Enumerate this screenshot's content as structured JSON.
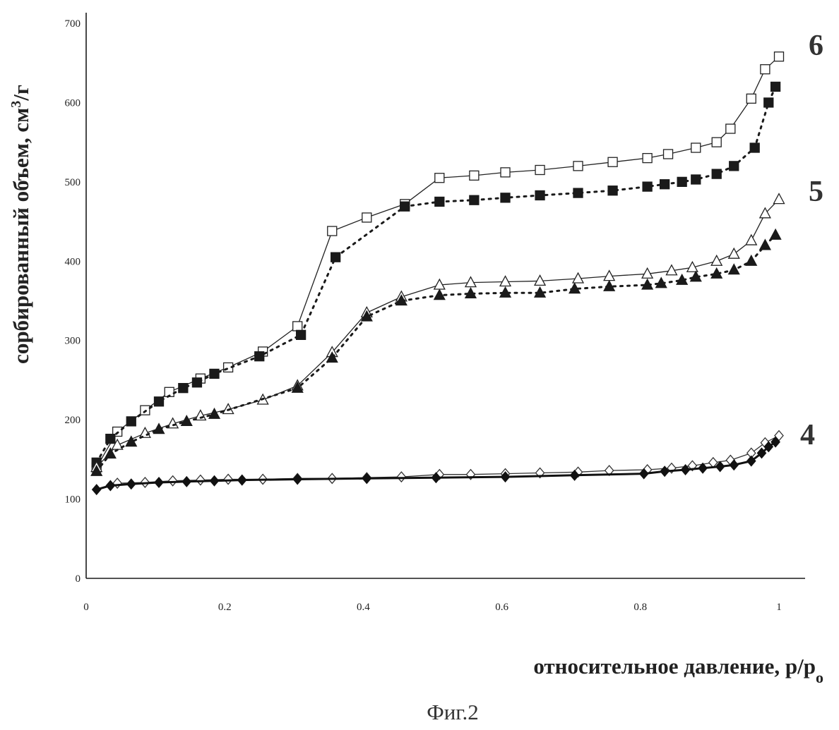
{
  "chart_data": {
    "type": "line",
    "ylabel_main": "сорбированный объем, см",
    "ylabel_sup": "3",
    "ylabel_tail": "/г",
    "xlabel_main": "относительное давление, p/p",
    "xlabel_sub": "o",
    "caption": "Фиг.2",
    "xlim": [
      0,
      1
    ],
    "ylim": [
      0,
      700
    ],
    "x_ticks": [
      "0",
      "0.2",
      "0.4",
      "0.6",
      "0.8",
      "1"
    ],
    "x_tick_values": [
      0,
      0.2,
      0.4,
      0.6,
      0.8,
      1
    ],
    "y_ticks": [
      "0",
      "100",
      "200",
      "300",
      "400",
      "500",
      "600",
      "700"
    ],
    "y_tick_values": [
      0,
      100,
      200,
      300,
      400,
      500,
      600,
      700
    ],
    "curve_labels": [
      {
        "text": "6",
        "curve": "6"
      },
      {
        "text": "5",
        "curve": "5"
      },
      {
        "text": "4",
        "curve": "4"
      }
    ],
    "series": [
      {
        "curve": "6",
        "kind": "desorption",
        "marker": "square",
        "filled": false,
        "line": "solid",
        "color": "#222222",
        "x": [
          0.015,
          0.045,
          0.085,
          0.12,
          0.165,
          0.205,
          0.255,
          0.305,
          0.355,
          0.405,
          0.46,
          0.51,
          0.56,
          0.605,
          0.655,
          0.71,
          0.76,
          0.81,
          0.84,
          0.88,
          0.91,
          0.93,
          0.96,
          0.98,
          1.0
        ],
        "y": [
          140,
          185,
          212,
          235,
          252,
          266,
          286,
          318,
          438,
          455,
          472,
          505,
          508,
          512,
          515,
          520,
          525,
          530,
          535,
          543,
          550,
          567,
          605,
          642,
          658
        ]
      },
      {
        "curve": "6",
        "kind": "adsorption",
        "marker": "square",
        "filled": true,
        "line": "dotted",
        "color": "#1a1a1a",
        "x": [
          0.015,
          0.035,
          0.065,
          0.105,
          0.14,
          0.16,
          0.185,
          0.25,
          0.31,
          0.36,
          0.46,
          0.51,
          0.56,
          0.605,
          0.655,
          0.71,
          0.76,
          0.81,
          0.835,
          0.86,
          0.88,
          0.91,
          0.935,
          0.965,
          0.985,
          0.995
        ],
        "y": [
          146,
          176,
          198,
          223,
          240,
          247,
          258,
          280,
          307,
          405,
          469,
          475,
          477,
          480,
          483,
          486,
          489,
          494,
          497,
          500,
          503,
          510,
          520,
          543,
          600,
          620
        ]
      },
      {
        "curve": "5",
        "kind": "desorption",
        "marker": "triangle",
        "filled": false,
        "line": "solid",
        "color": "#222222",
        "x": [
          0.015,
          0.045,
          0.085,
          0.125,
          0.165,
          0.205,
          0.255,
          0.305,
          0.355,
          0.405,
          0.455,
          0.51,
          0.555,
          0.605,
          0.655,
          0.71,
          0.755,
          0.81,
          0.845,
          0.875,
          0.91,
          0.935,
          0.96,
          0.98,
          1.0
        ],
        "y": [
          140,
          168,
          183,
          195,
          205,
          213,
          225,
          243,
          285,
          335,
          355,
          370,
          373,
          374,
          375,
          378,
          381,
          384,
          388,
          392,
          400,
          409,
          426,
          460,
          478
        ]
      },
      {
        "curve": "5",
        "kind": "adsorption",
        "marker": "triangle",
        "filled": true,
        "line": "dotted",
        "color": "#1a1a1a",
        "x": [
          0.015,
          0.035,
          0.065,
          0.105,
          0.145,
          0.185,
          0.305,
          0.355,
          0.405,
          0.455,
          0.51,
          0.555,
          0.605,
          0.655,
          0.705,
          0.755,
          0.81,
          0.83,
          0.86,
          0.88,
          0.91,
          0.935,
          0.96,
          0.98,
          0.995
        ],
        "y": [
          135,
          157,
          172,
          188,
          198,
          207,
          240,
          278,
          330,
          350,
          357,
          359,
          360,
          360,
          365,
          368,
          370,
          372,
          376,
          380,
          384,
          389,
          400,
          420,
          433
        ]
      },
      {
        "curve": "4",
        "kind": "desorption",
        "marker": "diamond",
        "filled": false,
        "line": "solid",
        "color": "#333333",
        "x": [
          0.045,
          0.085,
          0.125,
          0.165,
          0.205,
          0.255,
          0.305,
          0.355,
          0.405,
          0.455,
          0.51,
          0.555,
          0.605,
          0.655,
          0.71,
          0.755,
          0.81,
          0.845,
          0.875,
          0.905,
          0.93,
          0.96,
          0.98,
          1.0
        ],
        "y": [
          120,
          121,
          123,
          124,
          125,
          125,
          126,
          126,
          127,
          128,
          131,
          131,
          132,
          133,
          134,
          136,
          137,
          139,
          142,
          146,
          149,
          158,
          171,
          180
        ]
      },
      {
        "curve": "4",
        "kind": "adsorption",
        "marker": "diamond",
        "filled": true,
        "line": "solid-bold",
        "color": "#111111",
        "x": [
          0.015,
          0.035,
          0.065,
          0.105,
          0.145,
          0.185,
          0.225
        ],
        "y": [
          112,
          117,
          119,
          121,
          122,
          123,
          124
        ]
      },
      {
        "curve": "4",
        "kind": "adsorption-end",
        "marker": "diamond",
        "filled": true,
        "line": "solid-bold",
        "color": "#111111",
        "x": [
          0.225,
          0.305,
          0.405,
          0.505,
          0.605,
          0.705,
          0.805,
          0.835,
          0.865,
          0.89,
          0.915,
          0.935,
          0.96,
          0.975,
          0.985,
          0.995
        ],
        "y": [
          124,
          125,
          126,
          127,
          128,
          130,
          132,
          135,
          137,
          139,
          141,
          143,
          148,
          158,
          166,
          172
        ]
      }
    ]
  }
}
